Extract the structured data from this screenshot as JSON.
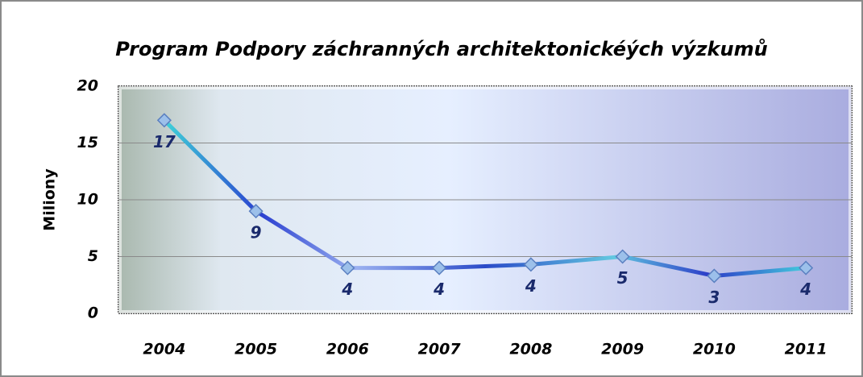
{
  "chart_data": {
    "type": "line",
    "title": "Program Podpory záchranných architektonickéých výzkumů",
    "y_label": "Miliony",
    "categories": [
      "2004",
      "2005",
      "2006",
      "2007",
      "2008",
      "2009",
      "2010",
      "2011"
    ],
    "values": [
      17,
      9,
      4,
      4,
      4.3,
      5,
      3.3,
      4
    ],
    "value_labels": [
      "17",
      "9",
      "4",
      "4",
      "4",
      "5",
      "3",
      "4"
    ],
    "ylim": [
      0,
      20
    ],
    "yticks": [
      0,
      5,
      10,
      15,
      20
    ],
    "grid": true
  }
}
